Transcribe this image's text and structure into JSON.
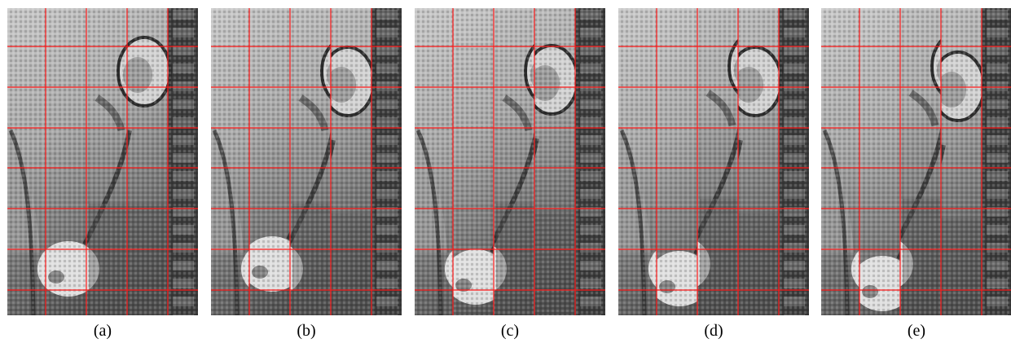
{
  "figure": {
    "panels": [
      {
        "caption": "(a)",
        "offsets": [
          0,
          0,
          0,
          0,
          0
        ]
      },
      {
        "caption": "(b)",
        "offsets": [
          0,
          -6,
          0,
          12,
          0
        ]
      },
      {
        "caption": "(c)",
        "offsets": [
          0,
          10,
          0,
          10,
          0
        ]
      },
      {
        "caption": "(d)",
        "offsets": [
          0,
          12,
          -6,
          12,
          0
        ]
      },
      {
        "caption": "(e)",
        "offsets": [
          0,
          18,
          -6,
          18,
          0
        ]
      }
    ],
    "colors": {
      "grid": "#ff1a1a",
      "background": "#ffffff",
      "caption": "#000000",
      "tissue_light": "#cfcfcf",
      "tissue_dark": "#4a4a4a",
      "void": "#000000"
    },
    "grid": {
      "columns": 5,
      "rows": 7
    }
  }
}
